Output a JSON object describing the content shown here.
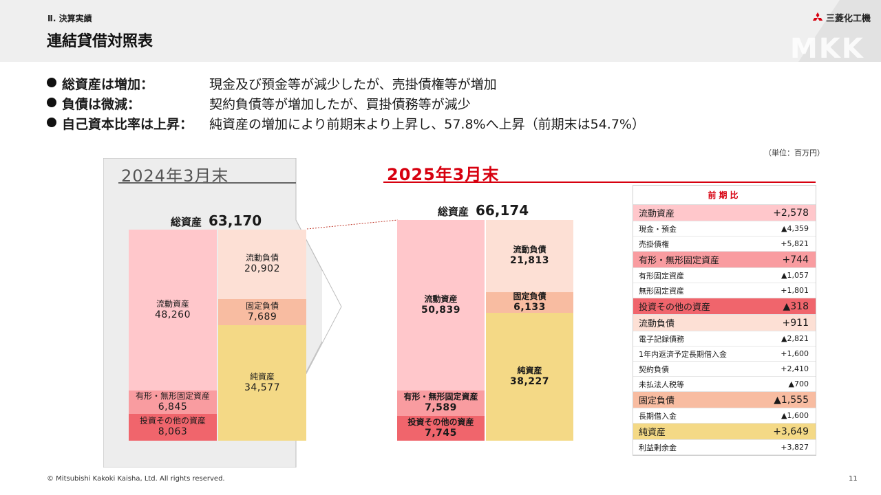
{
  "header": {
    "section": "Ⅱ. 決算実績",
    "title": "連結貸借対照表",
    "logo_text": "三菱化工機",
    "watermark": "MKK"
  },
  "bullets": [
    {
      "label": "総資産は増加：",
      "text": "現金及び預金等が減少したが、売掛債権等が増加"
    },
    {
      "label": "負債は微減：",
      "text": "契約負債等が増加したが、買掛債務等が減少"
    },
    {
      "label": "自己資本比率は上昇：",
      "text": "純資産の増加により前期末より上昇し、57.8%へ上昇（前期末は54.7%）"
    }
  ],
  "unit": "（単位：百万円）",
  "bs_2024": {
    "period": "2024年3月末",
    "total_label": "総資産",
    "total_value": "63,170",
    "current_assets": {
      "label": "流動資産",
      "value": "48,260"
    },
    "fixed_assets": {
      "label": "有形・無形固定資産",
      "value": "6,845"
    },
    "investments": {
      "label": "投資その他の資産",
      "value": "8,063"
    },
    "current_liabilities": {
      "label": "流動負債",
      "value": "20,902"
    },
    "fixed_liabilities": {
      "label": "固定負債",
      "value": "7,689"
    },
    "net_assets": {
      "label": "純資産",
      "value": "34,577"
    }
  },
  "bs_2025": {
    "period": "2025年3月末",
    "total_label": "総資産",
    "total_value": "66,174",
    "current_assets": {
      "label": "流動資産",
      "value": "50,839"
    },
    "fixed_assets": {
      "label": "有形・無形固定資産",
      "value": "7,589"
    },
    "investments": {
      "label": "投資その他の資産",
      "value": "7,745"
    },
    "current_liabilities": {
      "label": "流動負債",
      "value": "21,813"
    },
    "fixed_liabilities": {
      "label": "固定負債",
      "value": "6,133"
    },
    "net_assets": {
      "label": "純資産",
      "value": "38,227"
    }
  },
  "comparison": {
    "header": "前期比",
    "rows": [
      {
        "label": "流動資産",
        "value": "+2,578",
        "type": "main",
        "color": "#ffc7cb"
      },
      {
        "label": "現金・預金",
        "value": "▲4,359",
        "type": "sub"
      },
      {
        "label": "売掛債権",
        "value": "+5,821",
        "type": "sub"
      },
      {
        "label": "有形・無形固定資産",
        "value": "+744",
        "type": "main",
        "color": "#f99ca0"
      },
      {
        "label": "有形固定資産",
        "value": "▲1,057",
        "type": "sub"
      },
      {
        "label": "無形固定資産",
        "value": "+1,801",
        "type": "sub"
      },
      {
        "label": "投資その他の資産",
        "value": "▲318",
        "type": "main",
        "color": "#f0656c"
      },
      {
        "label": "流動負債",
        "value": "+911",
        "type": "main",
        "color": "#fde0d5"
      },
      {
        "label": "電子記録債務",
        "value": "▲2,821",
        "type": "sub"
      },
      {
        "label": "1年内返済予定長期借入金",
        "value": "+1,600",
        "type": "sub"
      },
      {
        "label": "契約負債",
        "value": "+2,410",
        "type": "sub"
      },
      {
        "label": "未払法人税等",
        "value": "▲700",
        "type": "sub"
      },
      {
        "label": "固定負債",
        "value": "▲1,555",
        "type": "main",
        "color": "#f8bca1"
      },
      {
        "label": "長期借入金",
        "value": "▲1,600",
        "type": "sub"
      },
      {
        "label": "純資産",
        "value": "+3,649",
        "type": "main",
        "color": "#f4d986"
      },
      {
        "label": "利益剰余金",
        "value": "+3,827",
        "type": "sub"
      }
    ]
  },
  "footer": {
    "copyright": "© Mitsubishi Kakoki Kaisha, Ltd. All rights reserved.",
    "page": "11"
  }
}
